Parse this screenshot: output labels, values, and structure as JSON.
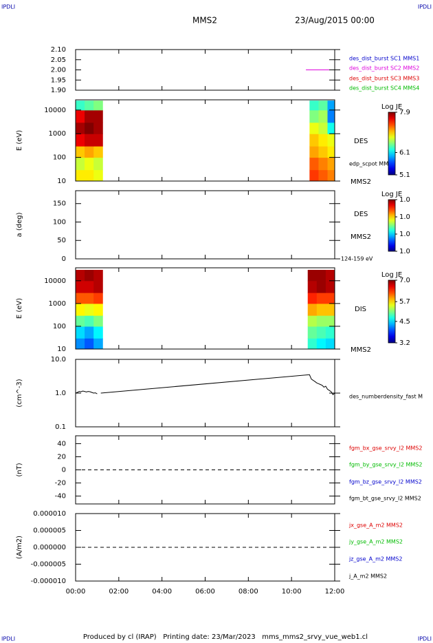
{
  "corner_label": "IPDLI",
  "title": "MMS2",
  "date": "23/Aug/2015 00:00",
  "footer": "Produced by cl (IRAP)   Printing date: 23/Mar/2023   mms_mms2_srvy_vue_web1.cl",
  "xaxis": {
    "xlim": [
      "00:00",
      "12:00"
    ],
    "xticks": [
      "00:00",
      "02:00",
      "04:00",
      "06:00",
      "08:00",
      "10:00",
      "12:00"
    ]
  },
  "chart_data": [
    {
      "type": "line",
      "ylim": [
        1.9,
        2.1
      ],
      "yticks": [
        {
          "value": 2.1,
          "label": "2.10"
        },
        {
          "value": 2.05,
          "label": "2.05"
        },
        {
          "value": 2.0,
          "label": "2.00"
        },
        {
          "value": 1.95,
          "label": "1.95"
        },
        {
          "value": 1.9,
          "label": "1.90"
        }
      ],
      "series": [
        {
          "name": "des_dist_burst SC1 MMS1",
          "color": "#0000cc"
        },
        {
          "name": "des_dist_burst SC2 MMS2",
          "color": "#dd00dd",
          "x": [
            "10:40",
            "12:00"
          ],
          "values": [
            2.0,
            2.0
          ]
        },
        {
          "name": "des_dist_burst SC3 MMS3",
          "color": "#dd0000"
        },
        {
          "name": "des_dist_burst SC4 MMS4",
          "color": "#00bb00"
        }
      ]
    },
    {
      "type": "spectrogram",
      "ylabel": "E (eV)",
      "log": true,
      "ylim": [
        10,
        27000
      ],
      "yticks": [
        10,
        100,
        1000,
        10000
      ],
      "labels": [
        "DES",
        "edp_scpot MMS2",
        "MMS2"
      ],
      "x_edges": [
        "00:00",
        "00:25",
        "00:50",
        "01:15",
        "10:50",
        "11:15",
        "11:40",
        "12:00"
      ],
      "y_edges": [
        10,
        30,
        100,
        300,
        1000,
        3000,
        10000,
        25000
      ],
      "z": [
        [
          6.9,
          6.9,
          6.8,
          null,
          7.4,
          7.3,
          7.2
        ],
        [
          6.7,
          6.8,
          6.7,
          null,
          7.3,
          7.2,
          7.1
        ],
        [
          7.0,
          7.1,
          7.0,
          null,
          7.1,
          7.0,
          6.9
        ],
        [
          7.6,
          7.7,
          7.7,
          null,
          7.0,
          6.9,
          6.8
        ],
        [
          7.8,
          7.9,
          7.8,
          null,
          6.8,
          6.7,
          6.2
        ],
        [
          7.6,
          7.8,
          7.8,
          null,
          6.5,
          6.6,
          5.8
        ],
        [
          6.3,
          6.4,
          6.5,
          null,
          6.3,
          6.4,
          5.9
        ]
      ],
      "colorbar": {
        "title": "Log JE",
        "zlim": [
          5.1,
          7.9
        ],
        "ticks": [
          7.9,
          6.1,
          5.1
        ]
      }
    },
    {
      "type": "spectrogram",
      "ylabel": "a (deg)",
      "ylim": [
        0,
        185
      ],
      "yticks": [
        0,
        50,
        100,
        150
      ],
      "labels": [
        "DES",
        "MMS2",
        "124-159 eV"
      ],
      "colorbar": {
        "title": "Log JE",
        "zlim": [
          0.98,
          1.04
        ],
        "ticks": [
          {
            "value": 1.04,
            "label": "1.0"
          },
          {
            "value": 1.02,
            "label": "1.0"
          },
          {
            "value": 1.0,
            "label": "1.0"
          },
          {
            "value": 0.98,
            "label": "1.0"
          }
        ]
      }
    },
    {
      "type": "spectrogram",
      "ylabel": "E (eV)",
      "log": true,
      "ylim": [
        10,
        37000
      ],
      "yticks": [
        10,
        100,
        1000,
        10000
      ],
      "labels": [
        "DIS",
        "MMS2"
      ],
      "x_edges": [
        "00:00",
        "00:25",
        "00:50",
        "01:15",
        "10:45",
        "11:10",
        "11:35",
        "12:00"
      ],
      "y_edges": [
        10,
        30,
        100,
        300,
        1000,
        3000,
        10000,
        30000
      ],
      "z": [
        [
          4.2,
          4.0,
          4.3,
          null,
          4.8,
          4.6,
          4.5
        ],
        [
          4.5,
          4.3,
          4.6,
          null,
          5.0,
          4.9,
          4.8
        ],
        [
          5.0,
          4.9,
          5.1,
          null,
          5.3,
          5.2,
          5.2
        ],
        [
          5.6,
          5.5,
          5.6,
          null,
          5.9,
          5.8,
          5.8
        ],
        [
          6.2,
          6.2,
          6.3,
          null,
          6.4,
          6.3,
          6.3
        ],
        [
          6.7,
          6.7,
          6.8,
          null,
          6.8,
          6.9,
          6.8
        ],
        [
          6.8,
          6.9,
          6.8,
          null,
          6.9,
          6.9,
          6.8
        ]
      ],
      "colorbar": {
        "title": "Log JE",
        "zlim": [
          3.2,
          7.0
        ],
        "ticks": [
          {
            "value": 7.0,
            "label": "7.0"
          },
          5.7,
          4.5,
          3.2
        ]
      }
    },
    {
      "type": "line",
      "ylabel": "(cm^-3)",
      "log": true,
      "ylim": [
        0.1,
        10
      ],
      "yticks": [
        {
          "value": 10,
          "label": "10.0"
        },
        {
          "value": 1,
          "label": "1.0"
        },
        0.1
      ],
      "series": [
        {
          "name": "des_numberdensity_fast M",
          "color": "#000000",
          "x": [
            "00:00",
            "00:05",
            "00:10",
            "00:15",
            "00:20",
            "00:25",
            "00:30",
            "00:35",
            "00:40",
            "00:45",
            "00:50",
            "00:55",
            "01:00",
            "01:05",
            "01:10",
            "10:50",
            "10:55",
            "11:00",
            "11:05",
            "11:10",
            "11:15",
            "11:20",
            "11:25",
            "11:30",
            "11:35",
            "11:40",
            "11:45",
            "11:50",
            "11:55",
            "12:00"
          ],
          "values": [
            1.0,
            1.05,
            1.12,
            1.1,
            1.15,
            1.12,
            1.08,
            1.12,
            1.1,
            1.05,
            1.0,
            1.02,
            0.95,
            null,
            1.0,
            3.5,
            2.6,
            2.4,
            2.2,
            2.0,
            1.9,
            1.8,
            1.7,
            1.5,
            1.6,
            1.3,
            1.2,
            1.1,
            0.9,
            1.0
          ]
        }
      ]
    },
    {
      "type": "line",
      "ylabel": "(nT)",
      "ylim": [
        -52,
        52
      ],
      "yticks": [
        40,
        20,
        0,
        -20,
        -40
      ],
      "hline": 0,
      "series": [
        {
          "name": "fgm_bx_gse_srvy_l2 MMS2",
          "color": "#dd0000"
        },
        {
          "name": "fgm_by_gse_srvy_l2 MMS2",
          "color": "#00bb00"
        },
        {
          "name": "fgm_bz_gse_srvy_l2 MMS2",
          "color": "#0000cc"
        },
        {
          "name": "fgm_bt_gse_srvy_l2 MMS2",
          "color": "#000000"
        }
      ]
    },
    {
      "type": "line",
      "ylabel": "(A/m2)",
      "ylim": [
        -1e-05,
        1e-05
      ],
      "hline": 0,
      "yticks": [
        {
          "value": 1e-05,
          "label": "0.000010"
        },
        {
          "value": 5e-06,
          "label": "0.000005"
        },
        {
          "value": 0,
          "label": "0.000000"
        },
        {
          "value": -5e-06,
          "label": "-0.000005"
        },
        {
          "value": -1e-05,
          "label": "-0.000010"
        }
      ],
      "series": [
        {
          "name": "jx_gse_A_m2 MMS2",
          "color": "#dd0000"
        },
        {
          "name": "jy_gse_A_m2 MMS2",
          "color": "#00bb00"
        },
        {
          "name": "jz_gse_A_m2 MMS2",
          "color": "#0000cc"
        },
        {
          "name": "j_A_m2 MMS2",
          "color": "#000000"
        }
      ]
    }
  ]
}
